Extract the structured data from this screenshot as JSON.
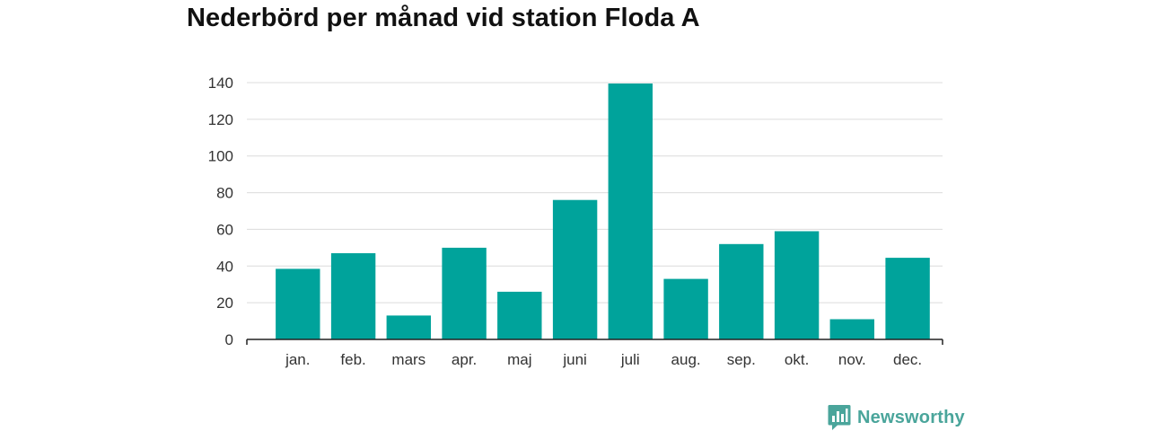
{
  "chart_data": {
    "type": "bar",
    "title": "Nederbörd per månad vid station Floda A",
    "xlabel": "",
    "ylabel": "",
    "categories": [
      "jan.",
      "feb.",
      "mars",
      "apr.",
      "maj",
      "juni",
      "juli",
      "aug.",
      "sep.",
      "okt.",
      "nov.",
      "dec."
    ],
    "values": [
      38.5,
      47,
      13,
      50,
      26,
      76,
      139.5,
      33,
      52,
      59,
      11,
      44.5
    ],
    "ylim": [
      0,
      140
    ],
    "yticks": [
      0,
      20,
      40,
      60,
      80,
      100,
      120,
      140
    ],
    "grid": true,
    "bar_color": "#00a39b",
    "grid_color": "#dcdcdc",
    "axis_color": "#222222"
  },
  "brand": {
    "name": "Newsworthy",
    "icon": "newsworthy-logo-icon",
    "color": "#4aa59b"
  }
}
